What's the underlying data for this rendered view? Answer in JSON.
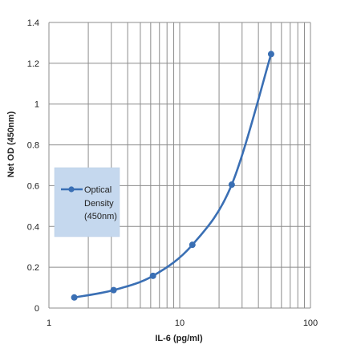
{
  "chart_data": {
    "type": "scatter",
    "title": "",
    "xlabel": "IL-6 (pg/ml)",
    "ylabel": "Net OD (450nm)",
    "x_scale": "log",
    "xlim": [
      1,
      100
    ],
    "ylim": [
      0,
      1.4
    ],
    "x_ticks": [
      "1",
      "10",
      "100"
    ],
    "y_ticks": [
      "0",
      "0.2",
      "0.4",
      "0.6",
      "0.8",
      "1",
      "1.2",
      "1.4"
    ],
    "grid": "vertical minor and major gridlines on log x-axis, horizontal major gridlines",
    "series": [
      {
        "name": "Optical Density (450nm)",
        "color": "#3a6fb4",
        "x": [
          1.5625,
          3.125,
          6.25,
          12.5,
          25,
          50
        ],
        "y": [
          0.052,
          0.088,
          0.158,
          0.31,
          0.605,
          1.245
        ],
        "smooth": true,
        "marker": "circle"
      }
    ],
    "legend": {
      "position": "middle-left, inside plot",
      "lines": [
        "Optical",
        "Density",
        "(450nm)"
      ],
      "background": "#c5d8ee"
    }
  }
}
